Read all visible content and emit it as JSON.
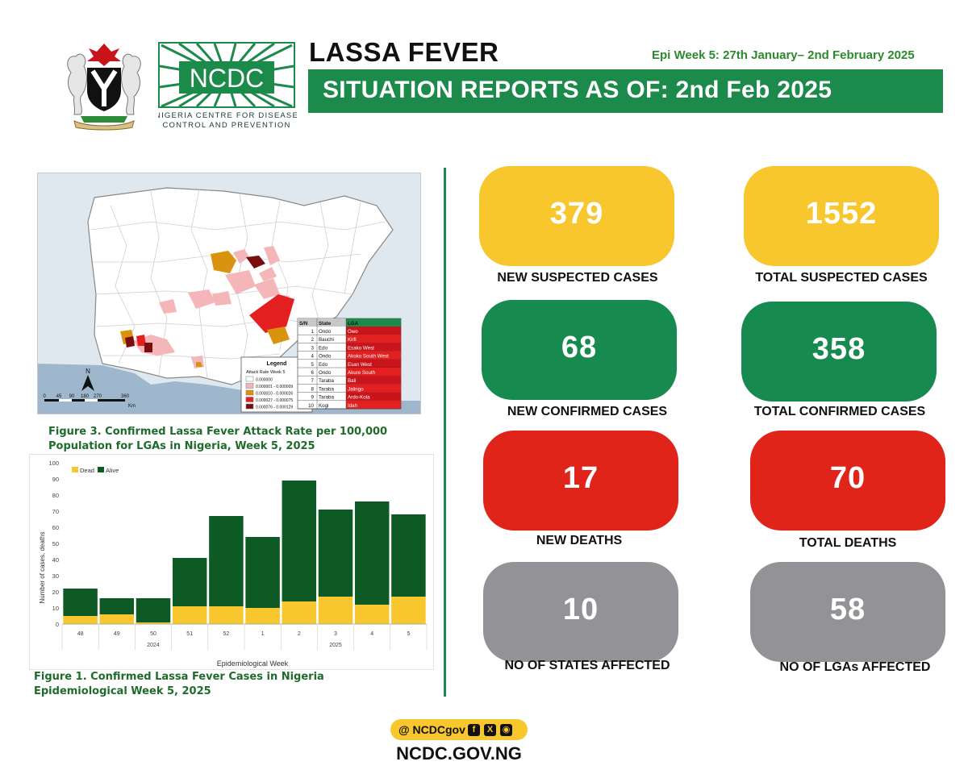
{
  "header": {
    "title": "LASSA FEVER",
    "epi_week": "Epi Week 5: 27th January– 2nd February 2025",
    "banner": "SITUATION REPORTS AS OF: 2nd Feb 2025",
    "logo_text": "NCDC",
    "logo_subtitle_1": "NIGERIA CENTRE FOR DISEASE",
    "logo_subtitle_2": "CONTROL AND PREVENTION"
  },
  "colors": {
    "brand_green": "#1b8a4a",
    "card_yellow": "#f8c72e",
    "card_green": "#168a4f",
    "card_red": "#e0241a",
    "card_grey": "#939296",
    "dead": "#f8c72e",
    "alive": "#0e5a25"
  },
  "map": {
    "legend_title": "Legend",
    "legend_subtitle": "Attack Rate Week 5",
    "legend_items": [
      {
        "label": "0.000000",
        "color": "#ffffff"
      },
      {
        "label": "0.000001 - 0.000009",
        "color": "#f4b6b9"
      },
      {
        "label": "0.000010 - 0.000026",
        "color": "#d9930e"
      },
      {
        "label": "0.000027 - 0.000075",
        "color": "#e41f1f"
      },
      {
        "label": "0.000076 - 0.000129",
        "color": "#7a0d10"
      }
    ],
    "scale_labels": [
      "0",
      "45",
      "90",
      "180",
      "270",
      "360"
    ],
    "scale_unit": "Km",
    "north": "N",
    "table_headers": [
      "S/N",
      "State",
      "LGA"
    ],
    "table_rows": [
      [
        "1",
        "Ondo",
        "Owo"
      ],
      [
        "2",
        "Bauchi",
        "Kirfi"
      ],
      [
        "3",
        "Edo",
        "Esako West"
      ],
      [
        "4",
        "Ondo",
        "Akoko South West"
      ],
      [
        "5",
        "Edo",
        "Esan West"
      ],
      [
        "6",
        "Ondo",
        "Akure South"
      ],
      [
        "7",
        "Taraba",
        "Bali"
      ],
      [
        "8",
        "Taraba",
        "Jalingo"
      ],
      [
        "9",
        "Taraba",
        "Ardo-Kola"
      ],
      [
        "10",
        "Kogi",
        "Idah"
      ]
    ]
  },
  "figure3_caption": "Figure 3. Confirmed Lassa Fever Attack Rate per 100,000 Population for LGAs in Nigeria, Week 5, 2025",
  "figure1_caption_line1": "Figure 1. Confirmed Lassa Fever Cases in Nigeria",
  "figure1_caption_line2": "Epidemiological Week 5, 2025",
  "chart_data": {
    "type": "bar",
    "stacked": true,
    "categories": [
      "48",
      "49",
      "50",
      "51",
      "52",
      "1",
      "2",
      "3",
      "4",
      "5"
    ],
    "year_groups": [
      {
        "label": "2024",
        "from": "48",
        "to": "52"
      },
      {
        "label": "2025",
        "from": "1",
        "to": "5"
      }
    ],
    "series": [
      {
        "name": "Dead",
        "values": [
          5,
          6,
          1,
          11,
          11,
          10,
          14,
          17,
          12,
          17
        ]
      },
      {
        "name": "Alive",
        "values": [
          17,
          10,
          15,
          30,
          56,
          44,
          75,
          54,
          64,
          51
        ]
      }
    ],
    "xlabel": "Epidemiological Week",
    "ylabel": "Number of cases, deaths",
    "ylim": [
      0,
      100
    ],
    "yticks": [
      0,
      10,
      20,
      30,
      40,
      50,
      60,
      70,
      80,
      90,
      100
    ],
    "legend_position": "top-left",
    "grid": false
  },
  "stats": {
    "new_suspected": {
      "value": "379",
      "label": "NEW SUSPECTED CASES"
    },
    "total_suspected": {
      "value": "1552",
      "label": "TOTAL SUSPECTED CASES"
    },
    "new_confirmed": {
      "value": "68",
      "label": "NEW CONFIRMED CASES"
    },
    "total_confirmed": {
      "value": "358",
      "label": "TOTAL CONFIRMED CASES"
    },
    "new_deaths": {
      "value": "17",
      "label": "NEW DEATHS"
    },
    "total_deaths": {
      "value": "70",
      "label": "TOTAL DEATHS"
    },
    "states_affected": {
      "value": "10",
      "label": "NO OF STATES  AFFECTED"
    },
    "lgas_affected": {
      "value": "58",
      "label": "NO OF LGAs AFFECTED"
    }
  },
  "footer": {
    "handle": "@ NCDCgov",
    "social_icons": [
      "facebook-icon",
      "x-icon",
      "instagram-icon"
    ],
    "website": "NCDC.GOV.NG"
  }
}
